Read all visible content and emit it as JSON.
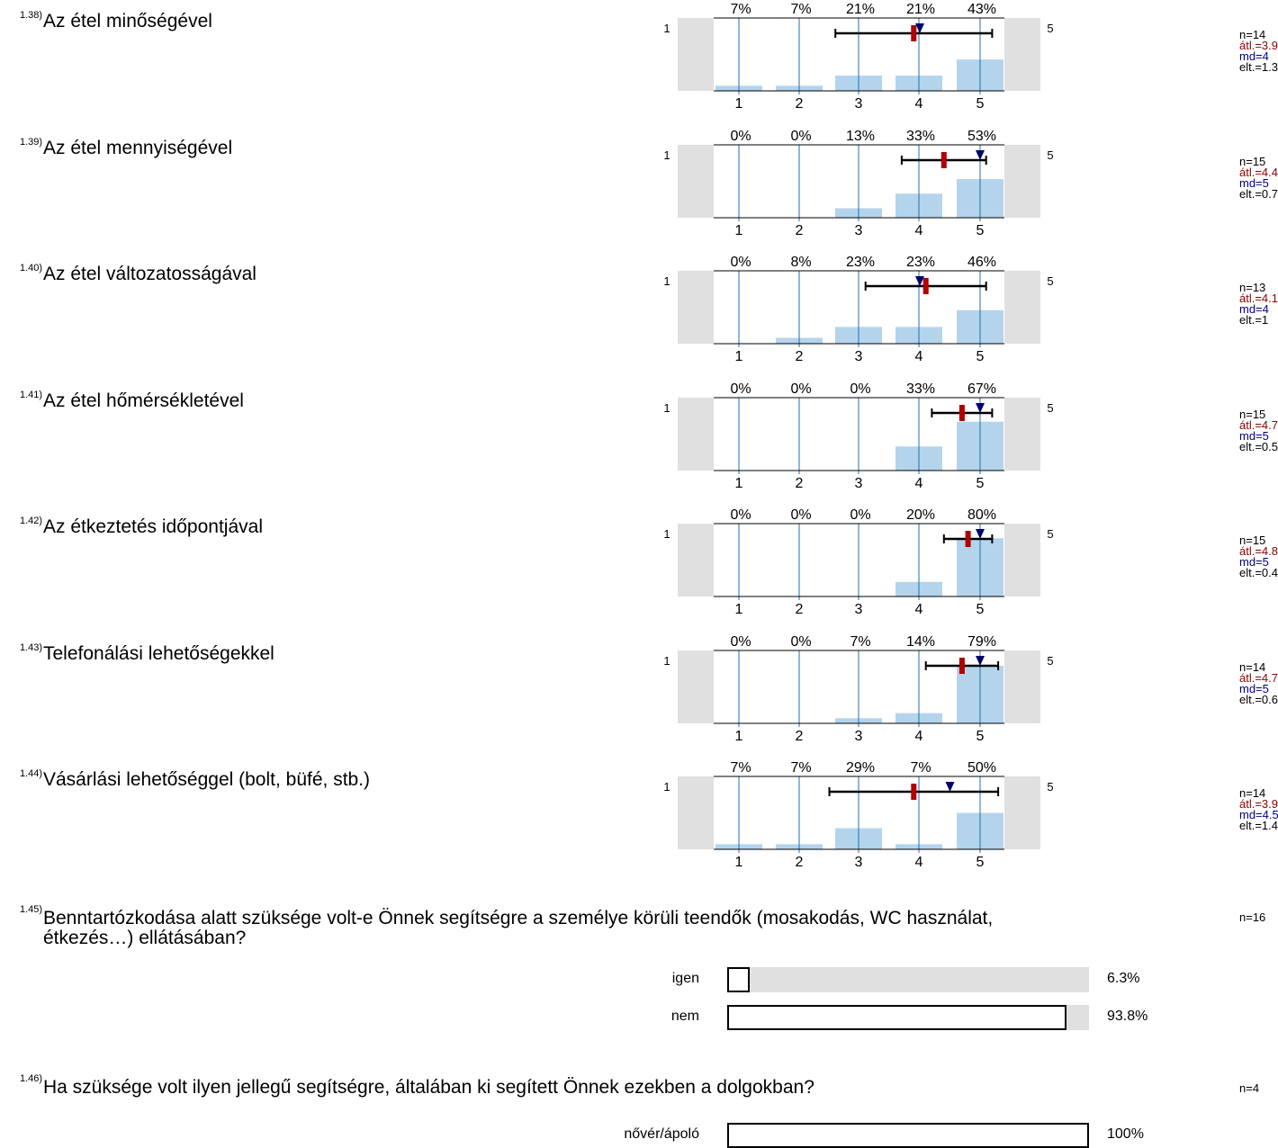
{
  "chart_data": [
    {
      "type": "bar",
      "id": "1.38)",
      "title": "Az étel minőségével",
      "categories": [
        "1",
        "2",
        "3",
        "4",
        "5"
      ],
      "pcts": [
        "7%",
        "7%",
        "21%",
        "21%",
        "43%"
      ],
      "values": [
        7,
        7,
        21,
        21,
        43
      ],
      "scale_left": "1",
      "scale_right": "5",
      "mean": 3.9,
      "median": 4,
      "sd": 1.3,
      "stats": {
        "n": "n=14",
        "mean": "átl.=3.9",
        "md": "md=4",
        "sd": "elt.=1.3"
      }
    },
    {
      "type": "bar",
      "id": "1.39)",
      "title": "Az étel mennyiségével",
      "categories": [
        "1",
        "2",
        "3",
        "4",
        "5"
      ],
      "pcts": [
        "0%",
        "0%",
        "13%",
        "33%",
        "53%"
      ],
      "values": [
        0,
        0,
        13,
        33,
        53
      ],
      "scale_left": "1",
      "scale_right": "5",
      "mean": 4.4,
      "median": 5,
      "sd": 0.7,
      "stats": {
        "n": "n=15",
        "mean": "átl.=4.4",
        "md": "md=5",
        "sd": "elt.=0.7"
      }
    },
    {
      "type": "bar",
      "id": "1.40)",
      "title": "Az étel változatosságával",
      "categories": [
        "1",
        "2",
        "3",
        "4",
        "5"
      ],
      "pcts": [
        "0%",
        "8%",
        "23%",
        "23%",
        "46%"
      ],
      "values": [
        0,
        8,
        23,
        23,
        46
      ],
      "scale_left": "1",
      "scale_right": "5",
      "mean": 4.1,
      "median": 4,
      "sd": 1,
      "stats": {
        "n": "n=13",
        "mean": "átl.=4.1",
        "md": "md=4",
        "sd": "elt.=1"
      }
    },
    {
      "type": "bar",
      "id": "1.41)",
      "title": "Az étel hőmérsékletével",
      "categories": [
        "1",
        "2",
        "3",
        "4",
        "5"
      ],
      "pcts": [
        "0%",
        "0%",
        "0%",
        "33%",
        "67%"
      ],
      "values": [
        0,
        0,
        0,
        33,
        67
      ],
      "scale_left": "1",
      "scale_right": "5",
      "mean": 4.7,
      "median": 5,
      "sd": 0.5,
      "stats": {
        "n": "n=15",
        "mean": "átl.=4.7",
        "md": "md=5",
        "sd": "elt.=0.5"
      }
    },
    {
      "type": "bar",
      "id": "1.42)",
      "title": "Az étkeztetés időpontjával",
      "categories": [
        "1",
        "2",
        "3",
        "4",
        "5"
      ],
      "pcts": [
        "0%",
        "0%",
        "0%",
        "20%",
        "80%"
      ],
      "values": [
        0,
        0,
        0,
        20,
        80
      ],
      "scale_left": "1",
      "scale_right": "5",
      "mean": 4.8,
      "median": 5,
      "sd": 0.4,
      "stats": {
        "n": "n=15",
        "mean": "átl.=4.8",
        "md": "md=5",
        "sd": "elt.=0.4"
      }
    },
    {
      "type": "bar",
      "id": "1.43)",
      "title": "Telefonálási lehetőségekkel",
      "categories": [
        "1",
        "2",
        "3",
        "4",
        "5"
      ],
      "pcts": [
        "0%",
        "0%",
        "7%",
        "14%",
        "79%"
      ],
      "values": [
        0,
        0,
        7,
        14,
        79
      ],
      "scale_left": "1",
      "scale_right": "5",
      "mean": 4.7,
      "median": 5,
      "sd": 0.6,
      "stats": {
        "n": "n=14",
        "mean": "átl.=4.7",
        "md": "md=5",
        "sd": "elt.=0.6"
      }
    },
    {
      "type": "bar",
      "id": "1.44)",
      "title": "Vásárlási lehetőséggel (bolt, büfé, stb.)",
      "categories": [
        "1",
        "2",
        "3",
        "4",
        "5"
      ],
      "pcts": [
        "7%",
        "7%",
        "29%",
        "7%",
        "50%"
      ],
      "values": [
        7,
        7,
        29,
        7,
        50
      ],
      "scale_left": "1",
      "scale_right": "5",
      "mean": 3.9,
      "median": 4.5,
      "sd": 1.4,
      "stats": {
        "n": "n=14",
        "mean": "átl.=3.9",
        "md": "md=4.5",
        "sd": "elt.=1.4"
      }
    }
  ],
  "q145": {
    "num": "1.45)",
    "text": "Benntartózkodása alatt szüksége volt-e Önnek segítségre a személye körüli teendők (mosakodás, WC használat, étkezés…) ellátásában?",
    "n": "n=16",
    "options": [
      {
        "label": "igen",
        "pct": "6.3%",
        "value": 6.3
      },
      {
        "label": "nem",
        "pct": "93.8%",
        "value": 93.8
      }
    ]
  },
  "q146": {
    "num": "1.46)",
    "text": "Ha szüksége volt ilyen jellegű segítségre, általában ki segített Önnek ezekben a dolgokban?",
    "n": "n=4",
    "options": [
      {
        "label": "nővér/ápoló",
        "pct": "100%",
        "value": 100
      }
    ]
  },
  "colors": {
    "bar": "#b4d4ec",
    "grid": "#1f6fb5",
    "panel": "#e0e0e0",
    "mean": "#b00000",
    "median": "#00006e"
  }
}
